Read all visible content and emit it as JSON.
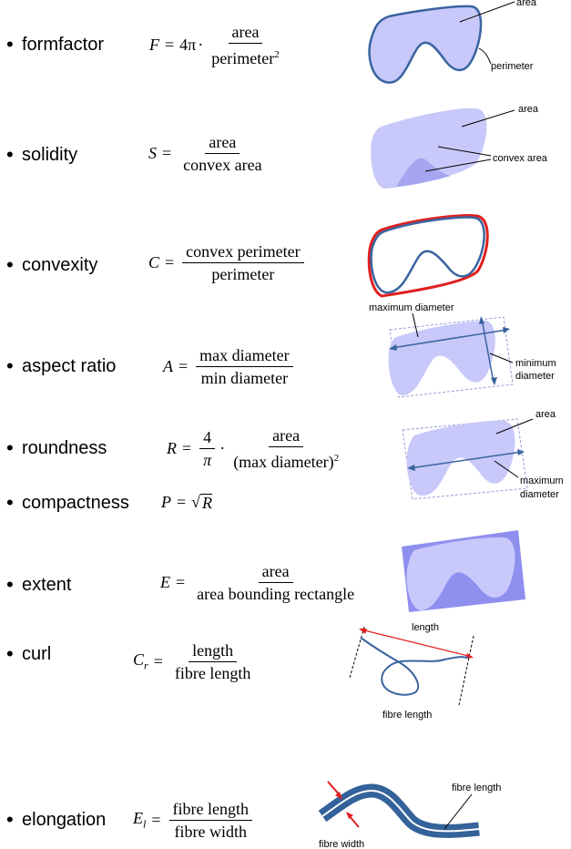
{
  "rows": [
    {
      "name": "formfactor",
      "lhs": "F",
      "coef": "4π",
      "num": "area",
      "den": "perimeter",
      "den_sup": "2",
      "labels": {
        "area": "area",
        "perimeter": "perimeter"
      }
    },
    {
      "name": "solidity",
      "lhs": "S",
      "num": "area",
      "den": "convex area",
      "labels": {
        "area": "area",
        "convex": "convex area"
      }
    },
    {
      "name": "convexity",
      "lhs": "C",
      "num": "convex perimeter",
      "den": "perimeter"
    },
    {
      "name": "aspect ratio",
      "lhs": "A",
      "num": "max  diameter",
      "den": "min  diameter",
      "labels": {
        "max": "maximum diameter",
        "min1": "minimum",
        "min2": "diameter"
      }
    },
    {
      "name": "roundness",
      "lhs": "R",
      "c_num": "4",
      "c_den": "π",
      "num": "area",
      "den": "(max  diameter)",
      "den_sup": "2",
      "labels": {
        "area": "area",
        "max1": "maximum",
        "max2": "diameter"
      }
    },
    {
      "name": "compactness",
      "lhs": "P",
      "radicand": "R"
    },
    {
      "name": "extent",
      "lhs": "E",
      "num": "area",
      "den": "area bounding rectangle"
    },
    {
      "name": "curl",
      "lhs": "C",
      "lhs_sub": "r",
      "num": "length",
      "den": "fibre length",
      "labels": {
        "length": "length",
        "fibre": "fibre length"
      }
    },
    {
      "name": "elongation",
      "lhs": "E",
      "lhs_sub": "l",
      "num": "fibre length",
      "den": "fibre width",
      "labels": {
        "length": "fibre length",
        "width": "fibre width"
      }
    }
  ],
  "symbols": {
    "bullet": "•",
    "equals": "=",
    "dot": "·",
    "sqrt": "√"
  },
  "colors": {
    "fill": "#c8c8fa",
    "fill_dark": "#a6a6f0",
    "outline": "#3a64a0",
    "red": "#e02020",
    "bbox": "#9a9ad8",
    "extent_rect": "#8f8ff0",
    "fibre": "#34629a"
  }
}
